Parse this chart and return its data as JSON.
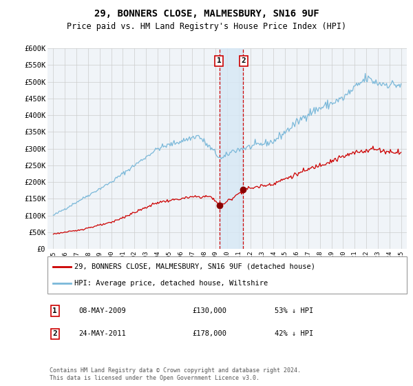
{
  "title": "29, BONNERS CLOSE, MALMESBURY, SN16 9UF",
  "subtitle": "Price paid vs. HM Land Registry's House Price Index (HPI)",
  "legend_line1": "29, BONNERS CLOSE, MALMESBURY, SN16 9UF (detached house)",
  "legend_line2": "HPI: Average price, detached house, Wiltshire",
  "sale1_date": "08-MAY-2009",
  "sale1_price": "£130,000",
  "sale1_hpi": "53% ↓ HPI",
  "sale1_year": 2009.35,
  "sale1_value": 130000,
  "sale2_date": "24-MAY-2011",
  "sale2_price": "£178,000",
  "sale2_hpi": "42% ↓ HPI",
  "sale2_year": 2011.38,
  "sale2_value": 178000,
  "hpi_color": "#7ab8d9",
  "price_color": "#cc0000",
  "dot_color": "#8b0000",
  "vline_color": "#cc0000",
  "shade_color": "#d6e8f5",
  "background_color": "#f0f4f8",
  "grid_color": "#cccccc",
  "ylim": [
    0,
    600000
  ],
  "yticks": [
    0,
    50000,
    100000,
    150000,
    200000,
    250000,
    300000,
    350000,
    400000,
    450000,
    500000,
    550000,
    600000
  ],
  "footnote": "Contains HM Land Registry data © Crown copyright and database right 2024.\nThis data is licensed under the Open Government Licence v3.0."
}
